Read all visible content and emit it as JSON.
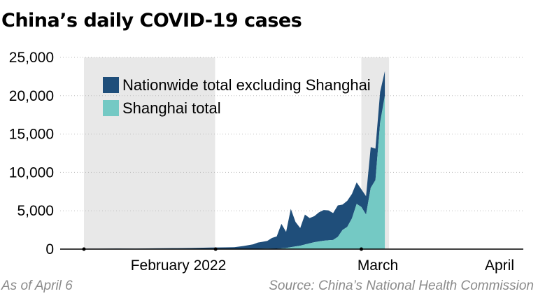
{
  "title": "China’s daily COVID-19 cases",
  "note": "As of April 6",
  "source": "Source: China’s National Health Commission",
  "chart_data": {
    "type": "area",
    "stacked": true,
    "title": "China’s daily COVID-19 cases",
    "xlabel": "",
    "ylabel": "",
    "ylim": [
      0,
      25000
    ],
    "yticks": [
      "0",
      "5,000",
      "10,000",
      "15,000",
      "20,000",
      "25,000"
    ],
    "ytick_values": [
      0,
      5000,
      10000,
      15000,
      20000,
      25000
    ],
    "xticks": [
      {
        "label": "February 2022",
        "date": "2022-02-01"
      },
      {
        "label": "March",
        "date": "2022-03-01"
      },
      {
        "label": "April",
        "date": "2022-04-01"
      }
    ],
    "grid": true,
    "legend_position": "top-left",
    "shaded_periods": [
      {
        "start": "2022-02-01",
        "end": "2022-02-28"
      },
      {
        "start": "2022-04-01",
        "end": "2022-04-06"
      }
    ],
    "colors": {
      "nationwide_excl_shanghai": "#1f4e7a",
      "shanghai": "#74c9c4",
      "shade": "#e8e8e8"
    },
    "x": [
      "2022-02-01",
      "2022-02-04",
      "2022-02-08",
      "2022-02-12",
      "2022-02-16",
      "2022-02-20",
      "2022-02-24",
      "2022-02-28",
      "2022-03-03",
      "2022-03-05",
      "2022-03-07",
      "2022-03-09",
      "2022-03-10",
      "2022-03-11",
      "2022-03-12",
      "2022-03-13",
      "2022-03-14",
      "2022-03-15",
      "2022-03-16",
      "2022-03-17",
      "2022-03-18",
      "2022-03-19",
      "2022-03-20",
      "2022-03-21",
      "2022-03-22",
      "2022-03-23",
      "2022-03-24",
      "2022-03-25",
      "2022-03-26",
      "2022-03-27",
      "2022-03-28",
      "2022-03-29",
      "2022-03-30",
      "2022-03-31",
      "2022-04-01",
      "2022-04-02",
      "2022-04-03",
      "2022-04-04",
      "2022-04-05",
      "2022-04-06"
    ],
    "series": [
      {
        "name": "Shanghai total",
        "values": [
          0,
          0,
          0,
          0,
          0,
          0,
          0,
          0,
          0,
          5,
          15,
          30,
          50,
          60,
          70,
          60,
          50,
          100,
          150,
          250,
          350,
          450,
          600,
          750,
          900,
          1000,
          1100,
          1150,
          1200,
          1600,
          2500,
          2900,
          4000,
          5900,
          5500,
          4500,
          8000,
          9000,
          16500,
          20000
        ]
      },
      {
        "name": "Nationwide total excluding Shanghai",
        "values": [
          50,
          60,
          80,
          70,
          100,
          120,
          150,
          200,
          230,
          250,
          400,
          600,
          800,
          900,
          1000,
          1400,
          1600,
          3200,
          2100,
          5000,
          3200,
          2300,
          3900,
          3300,
          3400,
          3800,
          4000,
          3900,
          3500,
          4100,
          3300,
          3400,
          3200,
          2800,
          2300,
          2400,
          5300,
          4100,
          4000,
          3200
        ]
      }
    ]
  }
}
